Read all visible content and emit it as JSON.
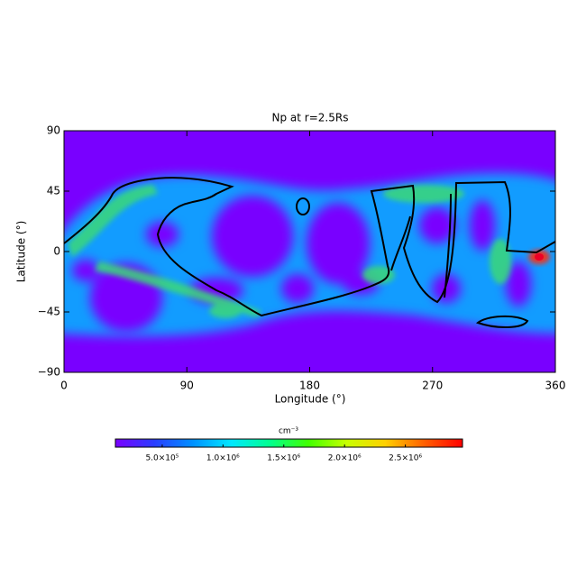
{
  "chart_data": {
    "type": "heatmap",
    "title": "Np at r=2.5Rs",
    "xlabel": "Longitude (°)",
    "ylabel": "Latitude (°)",
    "xlim": [
      0,
      360
    ],
    "xticks": [
      0,
      90,
      180,
      270,
      360
    ],
    "ylim": [
      -90,
      90
    ],
    "yticks": [
      {
        "value": -90,
        "label": "−90"
      },
      {
        "value": -45,
        "label": "−45"
      },
      0,
      45,
      90
    ],
    "colorbar": {
      "label": "cm⁻³",
      "clim": [
        115000,
        2970000
      ],
      "ticks": [
        {
          "value": 500000,
          "label": "5.0×10⁵"
        },
        {
          "value": 1000000,
          "label": "1.0×10⁶"
        },
        {
          "value": 1500000,
          "label": "1.5×10⁶"
        },
        {
          "value": 2000000,
          "label": "2.0×10⁶"
        },
        {
          "value": 2500000,
          "label": "2.5×10⁶"
        }
      ],
      "colormap": [
        "#7a00ff",
        "#2a3cff",
        "#0090ff",
        "#00e8ff",
        "#00ff90",
        "#40ff00",
        "#c8ff00",
        "#ffd000",
        "#ff6000",
        "#ff0000"
      ]
    }
  }
}
